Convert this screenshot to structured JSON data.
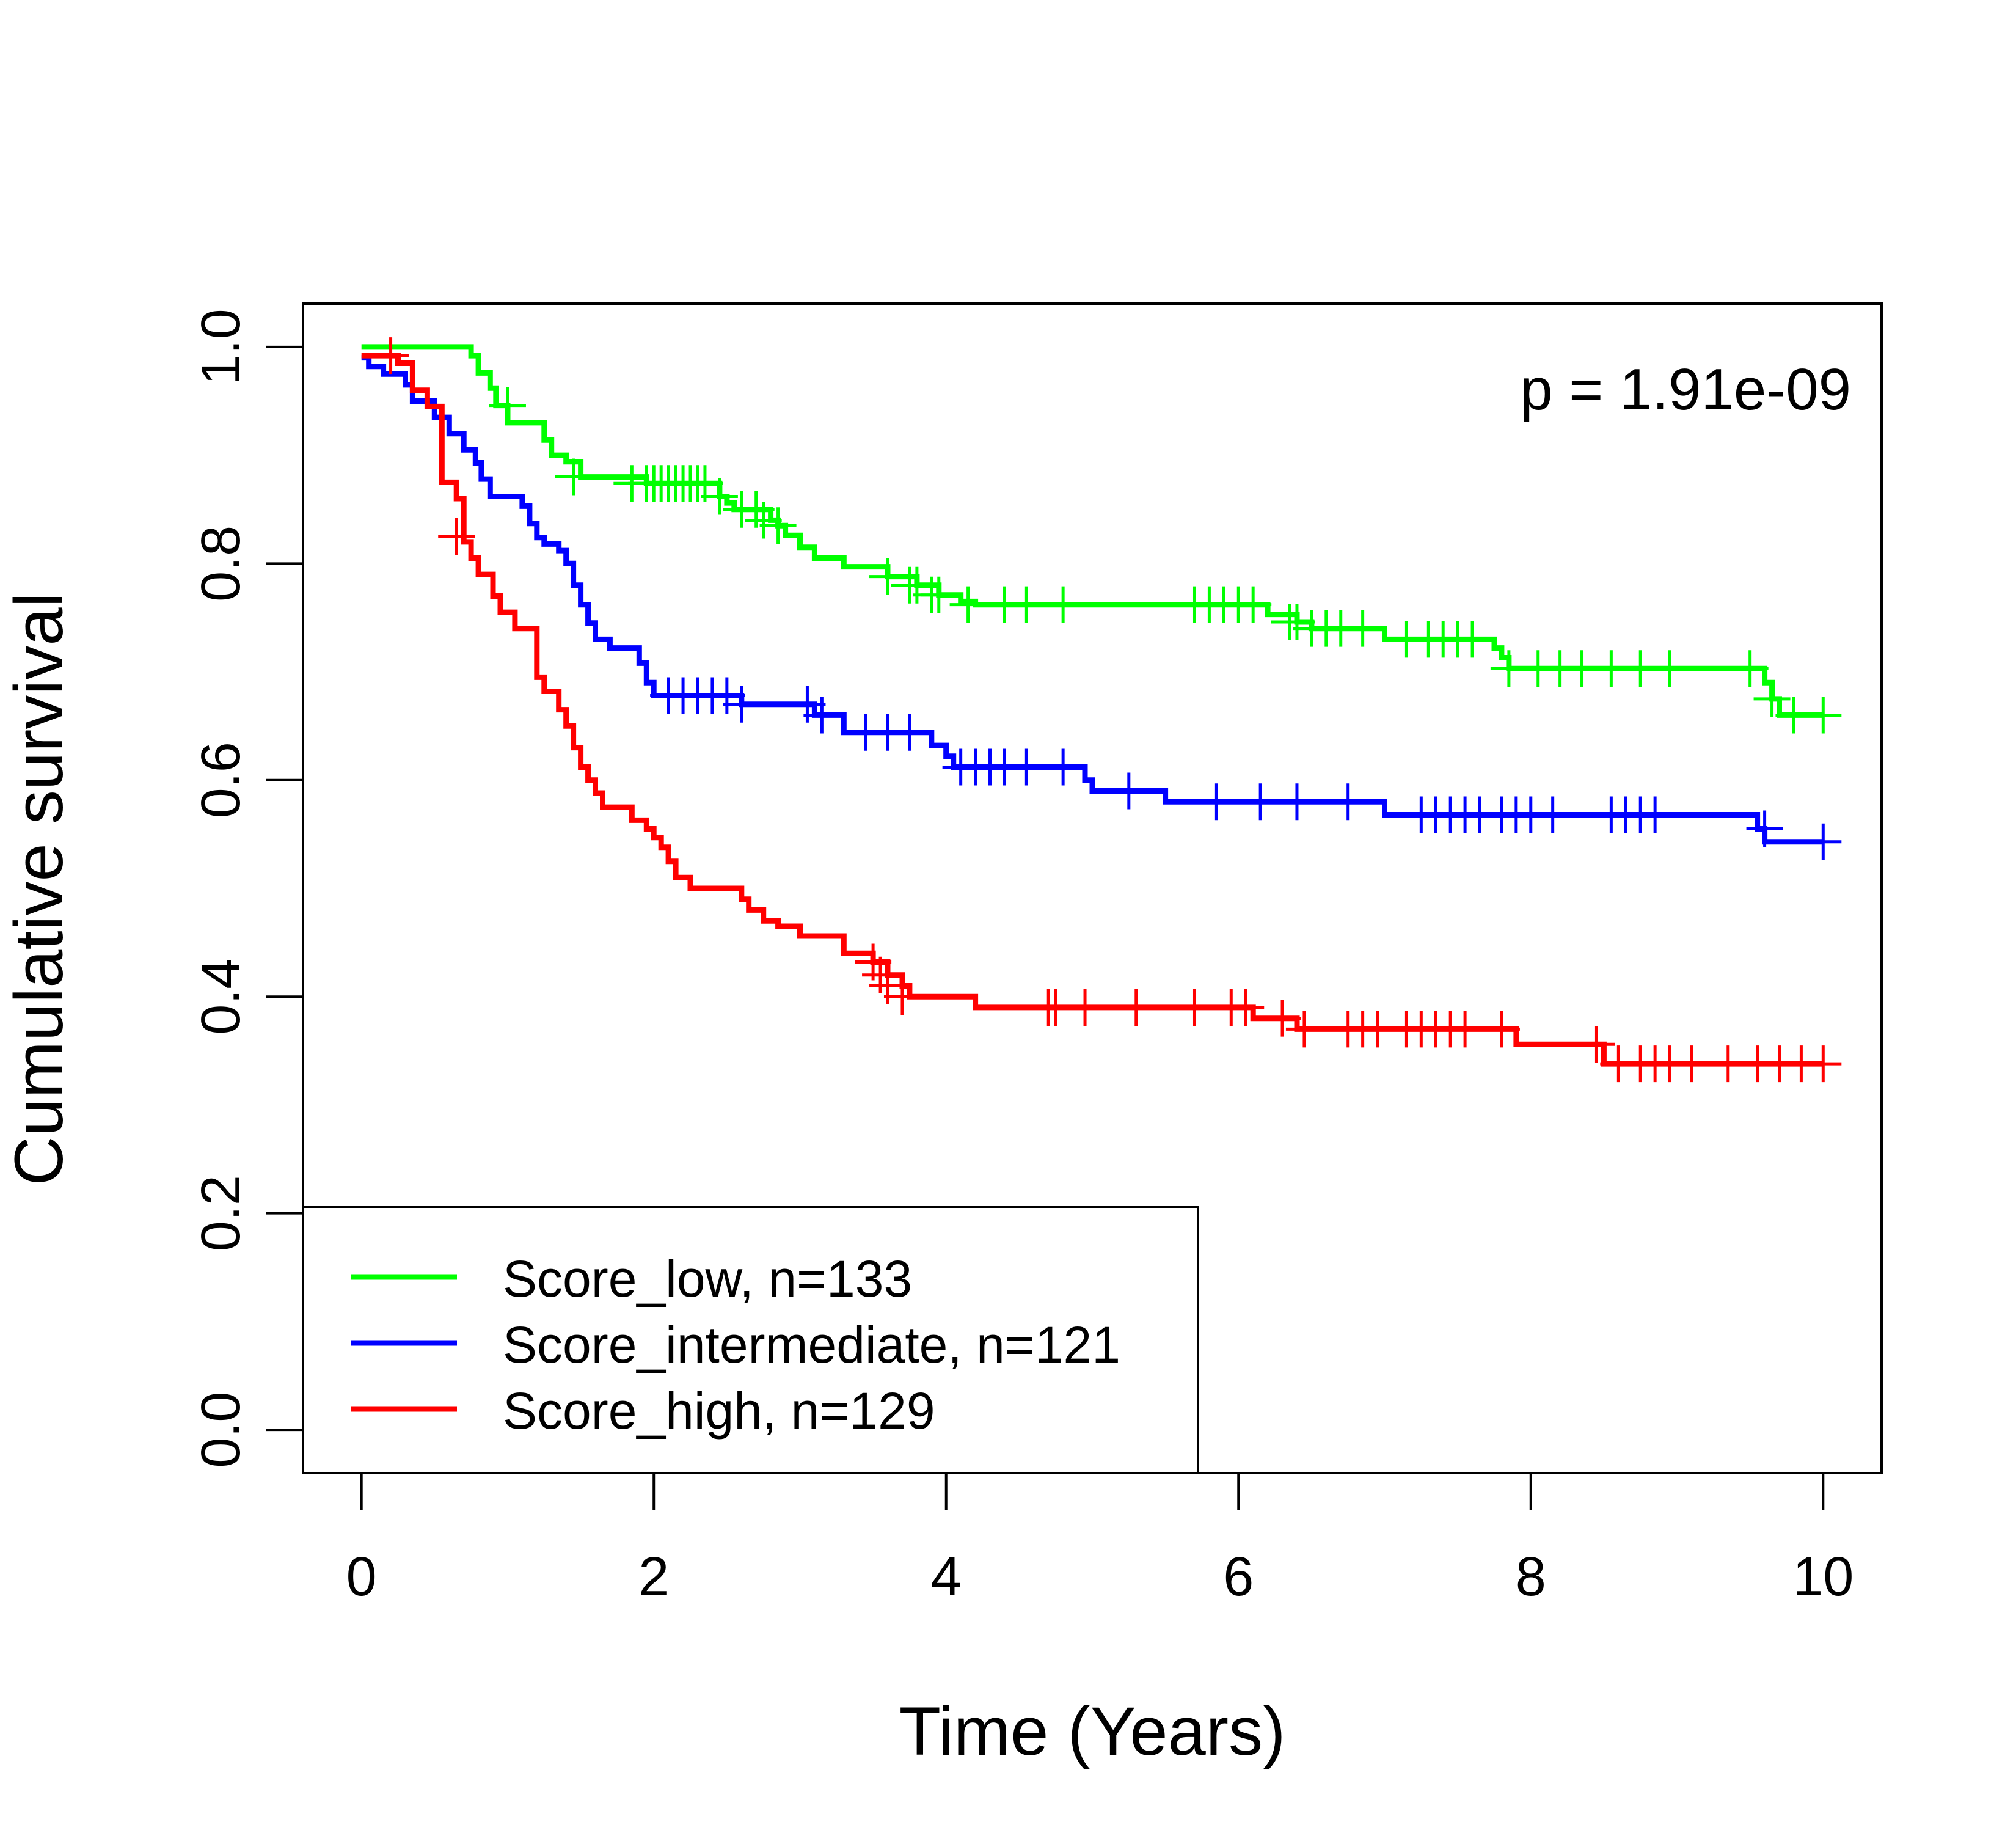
{
  "chart_data": {
    "type": "line",
    "step": true,
    "title": "",
    "xlabel": "Time (Years)",
    "ylabel": "Cumulative survival",
    "xlim": [
      -0.4,
      10.4
    ],
    "ylim": [
      -0.04,
      1.04
    ],
    "xticks": [
      0,
      2,
      4,
      6,
      8,
      10
    ],
    "xtick_labels": [
      "0",
      "2",
      "4",
      "6",
      "8",
      "10"
    ],
    "yticks": [
      0,
      0.2,
      0.4,
      0.6,
      0.8,
      1
    ],
    "ytick_labels": [
      "0.0",
      "0.2",
      "0.4",
      "0.6",
      "0.8",
      "1.0"
    ],
    "grid": false,
    "legend_position": "bottom-left",
    "annotation": "p = 1.91e-09",
    "series": [
      {
        "name": "Score_low, n=133",
        "color": "#00ff00",
        "points": [
          [
            0,
            1.0
          ],
          [
            0.75,
            0.992
          ],
          [
            0.8,
            0.976
          ],
          [
            0.88,
            0.962
          ],
          [
            0.92,
            0.946
          ],
          [
            1.0,
            0.93
          ],
          [
            1.25,
            0.914
          ],
          [
            1.3,
            0.9
          ],
          [
            1.4,
            0.894
          ],
          [
            1.5,
            0.88
          ],
          [
            1.95,
            0.874
          ],
          [
            2.45,
            0.862
          ],
          [
            2.5,
            0.856
          ],
          [
            2.55,
            0.85
          ],
          [
            2.8,
            0.84
          ],
          [
            2.85,
            0.835
          ],
          [
            2.9,
            0.826
          ],
          [
            3.0,
            0.815
          ],
          [
            3.1,
            0.805
          ],
          [
            3.3,
            0.797
          ],
          [
            3.6,
            0.788
          ],
          [
            3.8,
            0.78
          ],
          [
            3.95,
            0.771
          ],
          [
            4.1,
            0.765
          ],
          [
            4.2,
            0.762
          ],
          [
            6.2,
            0.753
          ],
          [
            6.4,
            0.746
          ],
          [
            6.5,
            0.74
          ],
          [
            6.9,
            0.74
          ],
          [
            7.0,
            0.73
          ],
          [
            7.75,
            0.722
          ],
          [
            7.8,
            0.713
          ],
          [
            7.85,
            0.703
          ],
          [
            9.55,
            0.703
          ],
          [
            9.6,
            0.69
          ],
          [
            9.65,
            0.675
          ],
          [
            9.7,
            0.66
          ],
          [
            10.0,
            0.66
          ]
        ],
        "censored": [
          [
            1.0,
            0.946
          ],
          [
            1.45,
            0.88
          ],
          [
            1.85,
            0.874
          ],
          [
            1.95,
            0.874
          ],
          [
            2.0,
            0.874
          ],
          [
            2.05,
            0.874
          ],
          [
            2.1,
            0.874
          ],
          [
            2.15,
            0.874
          ],
          [
            2.2,
            0.874
          ],
          [
            2.25,
            0.874
          ],
          [
            2.3,
            0.874
          ],
          [
            2.35,
            0.874
          ],
          [
            2.45,
            0.862
          ],
          [
            2.6,
            0.85
          ],
          [
            2.7,
            0.85
          ],
          [
            2.75,
            0.84
          ],
          [
            2.85,
            0.835
          ],
          [
            3.6,
            0.788
          ],
          [
            3.75,
            0.78
          ],
          [
            3.8,
            0.78
          ],
          [
            3.9,
            0.771
          ],
          [
            3.95,
            0.771
          ],
          [
            4.15,
            0.762
          ],
          [
            4.4,
            0.762
          ],
          [
            4.55,
            0.762
          ],
          [
            4.8,
            0.762
          ],
          [
            5.7,
            0.762
          ],
          [
            5.8,
            0.762
          ],
          [
            5.9,
            0.762
          ],
          [
            6.0,
            0.762
          ],
          [
            6.1,
            0.762
          ],
          [
            6.35,
            0.746
          ],
          [
            6.4,
            0.746
          ],
          [
            6.5,
            0.74
          ],
          [
            6.6,
            0.74
          ],
          [
            6.7,
            0.74
          ],
          [
            6.85,
            0.74
          ],
          [
            7.15,
            0.73
          ],
          [
            7.3,
            0.73
          ],
          [
            7.4,
            0.73
          ],
          [
            7.5,
            0.73
          ],
          [
            7.6,
            0.73
          ],
          [
            7.85,
            0.703
          ],
          [
            8.05,
            0.703
          ],
          [
            8.2,
            0.703
          ],
          [
            8.35,
            0.703
          ],
          [
            8.55,
            0.703
          ],
          [
            8.75,
            0.703
          ],
          [
            8.95,
            0.703
          ],
          [
            9.5,
            0.703
          ],
          [
            9.65,
            0.675
          ],
          [
            9.8,
            0.66
          ],
          [
            10.0,
            0.66
          ]
        ]
      },
      {
        "name": "Score_intermediate, n=121",
        "color": "#0000ff",
        "points": [
          [
            0,
            0.99
          ],
          [
            0.05,
            0.982
          ],
          [
            0.15,
            0.975
          ],
          [
            0.3,
            0.965
          ],
          [
            0.35,
            0.95
          ],
          [
            0.5,
            0.935
          ],
          [
            0.6,
            0.92
          ],
          [
            0.7,
            0.905
          ],
          [
            0.78,
            0.893
          ],
          [
            0.82,
            0.878
          ],
          [
            0.88,
            0.862
          ],
          [
            1.1,
            0.853
          ],
          [
            1.15,
            0.837
          ],
          [
            1.2,
            0.824
          ],
          [
            1.25,
            0.818
          ],
          [
            1.35,
            0.812
          ],
          [
            1.4,
            0.8
          ],
          [
            1.45,
            0.78
          ],
          [
            1.5,
            0.762
          ],
          [
            1.55,
            0.745
          ],
          [
            1.6,
            0.73
          ],
          [
            1.7,
            0.722
          ],
          [
            1.9,
            0.708
          ],
          [
            1.95,
            0.69
          ],
          [
            2.0,
            0.678
          ],
          [
            2.6,
            0.67
          ],
          [
            3.1,
            0.66
          ],
          [
            3.3,
            0.644
          ],
          [
            3.9,
            0.632
          ],
          [
            4.0,
            0.622
          ],
          [
            4.05,
            0.612
          ],
          [
            4.95,
            0.6
          ],
          [
            5.0,
            0.59
          ],
          [
            5.5,
            0.58
          ],
          [
            7.0,
            0.568
          ],
          [
            9.55,
            0.555
          ],
          [
            9.6,
            0.543
          ],
          [
            10.0,
            0.543
          ]
        ],
        "censored": [
          [
            2.1,
            0.678
          ],
          [
            2.2,
            0.678
          ],
          [
            2.3,
            0.678
          ],
          [
            2.4,
            0.678
          ],
          [
            2.5,
            0.678
          ],
          [
            2.6,
            0.67
          ],
          [
            3.05,
            0.67
          ],
          [
            3.15,
            0.66
          ],
          [
            3.45,
            0.644
          ],
          [
            3.6,
            0.644
          ],
          [
            3.75,
            0.644
          ],
          [
            4.1,
            0.612
          ],
          [
            4.2,
            0.612
          ],
          [
            4.3,
            0.612
          ],
          [
            4.4,
            0.612
          ],
          [
            4.55,
            0.612
          ],
          [
            4.8,
            0.612
          ],
          [
            5.25,
            0.59
          ],
          [
            5.85,
            0.58
          ],
          [
            6.15,
            0.58
          ],
          [
            6.4,
            0.58
          ],
          [
            6.75,
            0.58
          ],
          [
            7.25,
            0.568
          ],
          [
            7.35,
            0.568
          ],
          [
            7.45,
            0.568
          ],
          [
            7.55,
            0.568
          ],
          [
            7.65,
            0.568
          ],
          [
            7.8,
            0.568
          ],
          [
            7.9,
            0.568
          ],
          [
            8.0,
            0.568
          ],
          [
            8.15,
            0.568
          ],
          [
            8.55,
            0.568
          ],
          [
            8.65,
            0.568
          ],
          [
            8.75,
            0.568
          ],
          [
            8.85,
            0.568
          ],
          [
            9.6,
            0.555
          ],
          [
            10.0,
            0.543
          ]
        ]
      },
      {
        "name": "Score_high, n=129",
        "color": "#ff0000",
        "points": [
          [
            0,
            0.992
          ],
          [
            0.25,
            0.985
          ],
          [
            0.35,
            0.96
          ],
          [
            0.45,
            0.945
          ],
          [
            0.55,
            0.875
          ],
          [
            0.65,
            0.86
          ],
          [
            0.7,
            0.82
          ],
          [
            0.75,
            0.805
          ],
          [
            0.8,
            0.79
          ],
          [
            0.9,
            0.77
          ],
          [
            0.95,
            0.755
          ],
          [
            1.05,
            0.74
          ],
          [
            1.2,
            0.695
          ],
          [
            1.25,
            0.682
          ],
          [
            1.35,
            0.665
          ],
          [
            1.4,
            0.65
          ],
          [
            1.45,
            0.63
          ],
          [
            1.5,
            0.612
          ],
          [
            1.55,
            0.6
          ],
          [
            1.6,
            0.588
          ],
          [
            1.65,
            0.575
          ],
          [
            1.85,
            0.563
          ],
          [
            1.95,
            0.555
          ],
          [
            2.0,
            0.547
          ],
          [
            2.05,
            0.538
          ],
          [
            2.1,
            0.525
          ],
          [
            2.15,
            0.51
          ],
          [
            2.25,
            0.5
          ],
          [
            2.6,
            0.49
          ],
          [
            2.65,
            0.48
          ],
          [
            2.75,
            0.47
          ],
          [
            2.85,
            0.465
          ],
          [
            3.0,
            0.456
          ],
          [
            3.3,
            0.44
          ],
          [
            3.5,
            0.432
          ],
          [
            3.6,
            0.42
          ],
          [
            3.7,
            0.41
          ],
          [
            3.75,
            0.4
          ],
          [
            4.2,
            0.39
          ],
          [
            6.1,
            0.38
          ],
          [
            6.4,
            0.37
          ],
          [
            7.0,
            0.37
          ],
          [
            7.9,
            0.356
          ],
          [
            8.5,
            0.338
          ],
          [
            10.0,
            0.338
          ]
        ],
        "censored": [
          [
            0.2,
            0.992
          ],
          [
            0.65,
            0.825
          ],
          [
            3.5,
            0.432
          ],
          [
            3.55,
            0.42
          ],
          [
            3.6,
            0.41
          ],
          [
            3.7,
            0.4
          ],
          [
            4.7,
            0.39
          ],
          [
            4.75,
            0.39
          ],
          [
            4.95,
            0.39
          ],
          [
            5.3,
            0.39
          ],
          [
            5.7,
            0.39
          ],
          [
            5.95,
            0.39
          ],
          [
            6.05,
            0.39
          ],
          [
            6.3,
            0.38
          ],
          [
            6.45,
            0.37
          ],
          [
            6.75,
            0.37
          ],
          [
            6.85,
            0.37
          ],
          [
            6.95,
            0.37
          ],
          [
            7.15,
            0.37
          ],
          [
            7.25,
            0.37
          ],
          [
            7.35,
            0.37
          ],
          [
            7.45,
            0.37
          ],
          [
            7.55,
            0.37
          ],
          [
            7.8,
            0.37
          ],
          [
            8.45,
            0.356
          ],
          [
            8.6,
            0.338
          ],
          [
            8.75,
            0.338
          ],
          [
            8.85,
            0.338
          ],
          [
            8.95,
            0.338
          ],
          [
            9.1,
            0.338
          ],
          [
            9.35,
            0.338
          ],
          [
            9.55,
            0.338
          ],
          [
            9.7,
            0.338
          ],
          [
            9.85,
            0.338
          ],
          [
            10.0,
            0.338
          ]
        ]
      }
    ]
  }
}
